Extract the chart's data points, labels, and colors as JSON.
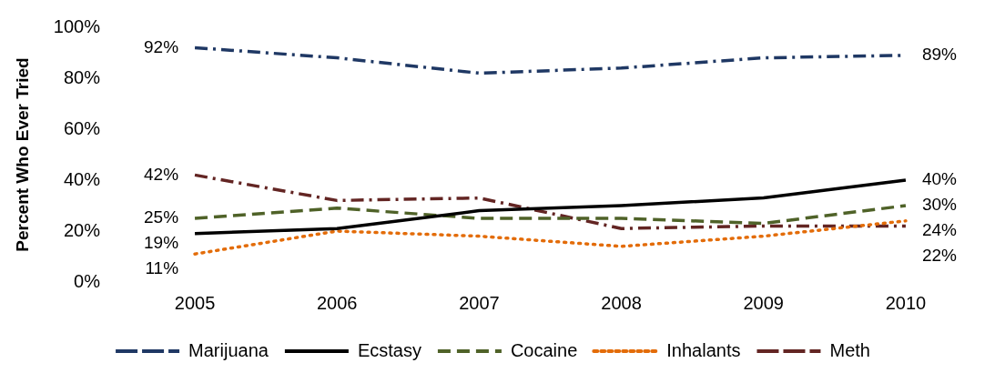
{
  "chart_data": {
    "type": "line",
    "ylabel": "Percent Who Ever Tried",
    "categories": [
      "2005",
      "2006",
      "2007",
      "2008",
      "2009",
      "2010"
    ],
    "ylim": [
      0,
      100
    ],
    "yticks": [
      {
        "value": 0,
        "label": "0%"
      },
      {
        "value": 20,
        "label": "20%"
      },
      {
        "value": 40,
        "label": "40%"
      },
      {
        "value": 60,
        "label": "60%"
      },
      {
        "value": 80,
        "label": "80%"
      },
      {
        "value": 100,
        "label": "100%"
      }
    ],
    "legend": "bottom",
    "marker": "none",
    "series": [
      {
        "name": "Marijuana",
        "color": "#1f3864",
        "line_style": "dashdot",
        "values": [
          92,
          88,
          82,
          84,
          88,
          89
        ],
        "value_labels": [
          "92%",
          null,
          null,
          null,
          null,
          "89%"
        ]
      },
      {
        "name": "Ecstasy",
        "color": "#000000",
        "line_style": "solid",
        "values": [
          19,
          21,
          28,
          30,
          33,
          40
        ],
        "value_labels": [
          "19%",
          null,
          null,
          null,
          null,
          "40%"
        ]
      },
      {
        "name": "Cocaine",
        "color": "#4f6228",
        "line_style": "dashed",
        "values": [
          25,
          29,
          25,
          25,
          23,
          30
        ],
        "value_labels": [
          "25%",
          null,
          null,
          null,
          null,
          "30%"
        ]
      },
      {
        "name": "Inhalants",
        "color": "#e36c09",
        "line_style": "dotted",
        "values": [
          11,
          20,
          18,
          14,
          18,
          24
        ],
        "value_labels": [
          "11%",
          null,
          null,
          null,
          null,
          "24%"
        ]
      },
      {
        "name": "Meth",
        "color": "#632523",
        "line_style": "dashdot",
        "values": [
          42,
          32,
          33,
          21,
          22,
          22
        ],
        "value_labels": [
          "42%",
          null,
          null,
          null,
          null,
          "22%"
        ]
      }
    ]
  }
}
